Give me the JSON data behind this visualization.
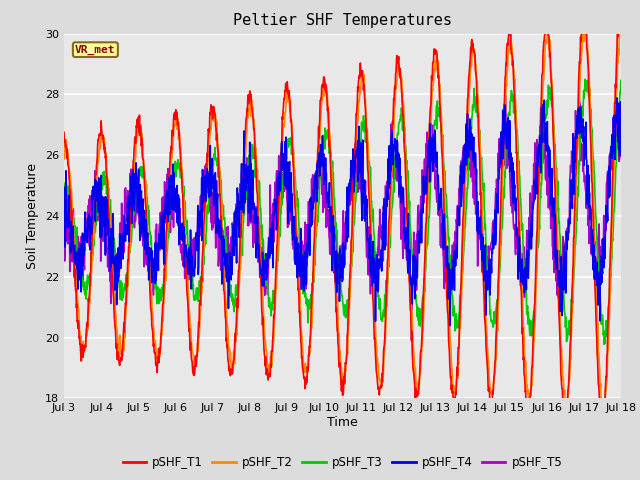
{
  "title": "Peltier SHF Temperatures",
  "ylabel": "Soil Temperature",
  "xlabel": "Time",
  "ylim": [
    18,
    30
  ],
  "yticks": [
    18,
    20,
    22,
    24,
    26,
    28,
    30
  ],
  "xtick_labels": [
    "Jul 3",
    "Jul 4",
    "Jul 5",
    "Jul 6",
    "Jul 7",
    "Jul 8",
    "Jul 9",
    "Jul 10",
    "Jul 11",
    "Jul 12",
    "Jul 13",
    "Jul 14",
    "Jul 15",
    "Jul 16",
    "Jul 17",
    "Jul 18"
  ],
  "annotation_text": "VR_met",
  "colors": {
    "pSHF_T1": "#FF0000",
    "pSHF_T2": "#FF8800",
    "pSHF_T3": "#00CC00",
    "pSHF_T4": "#0000EE",
    "pSHF_T5": "#AA00CC"
  },
  "plot_bg_color": "#E8E8E8",
  "fig_bg_color": "#DCDCDC",
  "grid_color": "#FFFFFF",
  "linewidth": 1.2,
  "n_days": 15,
  "n_per_day": 96
}
